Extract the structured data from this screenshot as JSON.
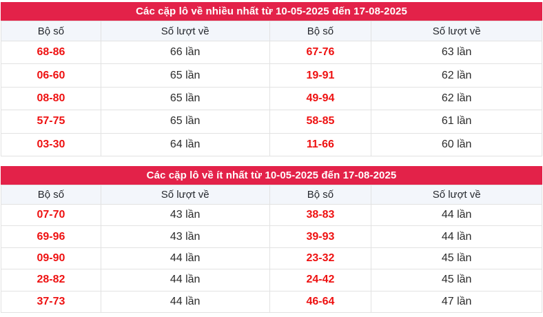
{
  "colors": {
    "title_bg": "#e32249",
    "title_text": "#ffffff",
    "header_bg": "#f3f6fb",
    "header_text": "#25282e",
    "pair_text": "#ee1111",
    "count_text": "#2b2b2b",
    "border": "#e2e2e2"
  },
  "tables": [
    {
      "title": "Các cặp lô về nhiều nhất từ 10-05-2025 đến 17-08-2025",
      "columns": [
        "Bộ số",
        "Số lượt về",
        "Bộ số",
        "Số lượt về"
      ],
      "rows": [
        [
          "68-86",
          "66 lần",
          "67-76",
          "63 lần"
        ],
        [
          "06-60",
          "65 lần",
          "19-91",
          "62 lần"
        ],
        [
          "08-80",
          "65 lần",
          "49-94",
          "62 lần"
        ],
        [
          "57-75",
          "65 lần",
          "58-85",
          "61 lần"
        ],
        [
          "03-30",
          "64 lần",
          "11-66",
          "60 lần"
        ]
      ]
    },
    {
      "title": "Các cặp lô về ít nhất từ 10-05-2025 đến 17-08-2025",
      "columns": [
        "Bộ số",
        "Số lượt về",
        "Bộ số",
        "Số lượt về"
      ],
      "rows": [
        [
          "07-70",
          "43 lần",
          "38-83",
          "44 lần"
        ],
        [
          "69-96",
          "43 lần",
          "39-93",
          "44 lần"
        ],
        [
          "09-90",
          "44 lần",
          "23-32",
          "45 lần"
        ],
        [
          "28-82",
          "44 lần",
          "24-42",
          "45 lần"
        ],
        [
          "37-73",
          "44 lần",
          "46-64",
          "47 lần"
        ]
      ]
    }
  ]
}
